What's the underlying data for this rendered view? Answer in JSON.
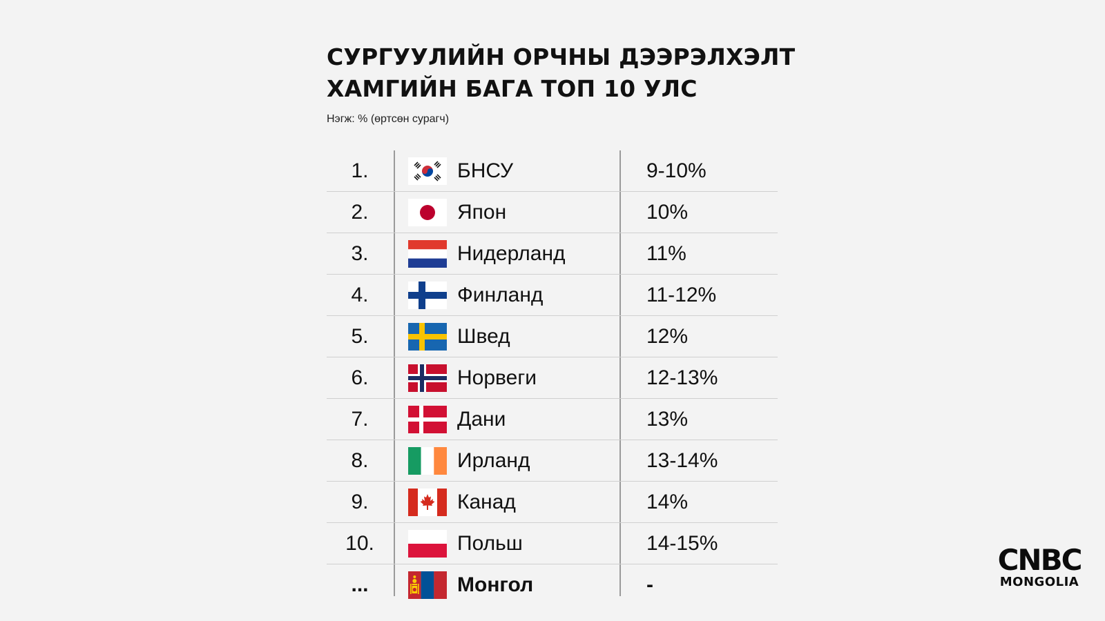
{
  "header": {
    "title_line1": "СУРГУУЛИЙН ОРЧНЫ ДЭЭРЭЛХЭЛТ",
    "title_line2": "ХАМГИЙН БАГА ТОП 10 УЛС",
    "unit": "Нэгж: % (өртсөн сурагч)"
  },
  "rows": [
    {
      "rank": "1.",
      "country": "БНСУ",
      "value": "9-10%",
      "flag": "south-korea-flag-icon"
    },
    {
      "rank": "2.",
      "country": "Япон",
      "value": "10%",
      "flag": "japan-flag-icon"
    },
    {
      "rank": "3.",
      "country": "Нидерланд",
      "value": "11%",
      "flag": "netherlands-flag-icon"
    },
    {
      "rank": "4.",
      "country": "Финланд",
      "value": "11-12%",
      "flag": "finland-flag-icon"
    },
    {
      "rank": "5.",
      "country": "Швед",
      "value": "12%",
      "flag": "sweden-flag-icon"
    },
    {
      "rank": "6.",
      "country": "Норвеги",
      "value": "12-13%",
      "flag": "norway-flag-icon"
    },
    {
      "rank": "7.",
      "country": "Дани",
      "value": "13%",
      "flag": "denmark-flag-icon"
    },
    {
      "rank": "8.",
      "country": "Ирланд",
      "value": "13-14%",
      "flag": "ireland-flag-icon"
    },
    {
      "rank": "9.",
      "country": "Канад",
      "value": "14%",
      "flag": "canada-flag-icon"
    },
    {
      "rank": "10.",
      "country": "Польш",
      "value": "14-15%",
      "flag": "poland-flag-icon"
    },
    {
      "rank": "...",
      "country": "Монгол",
      "value": "-",
      "flag": "mongolia-flag-icon"
    }
  ],
  "logo": {
    "line1": "CNBC",
    "line2": "MONGOLIA"
  },
  "colors": {
    "background": "#f3f3f3",
    "text": "#111111",
    "divider": "#cfcfcf"
  }
}
